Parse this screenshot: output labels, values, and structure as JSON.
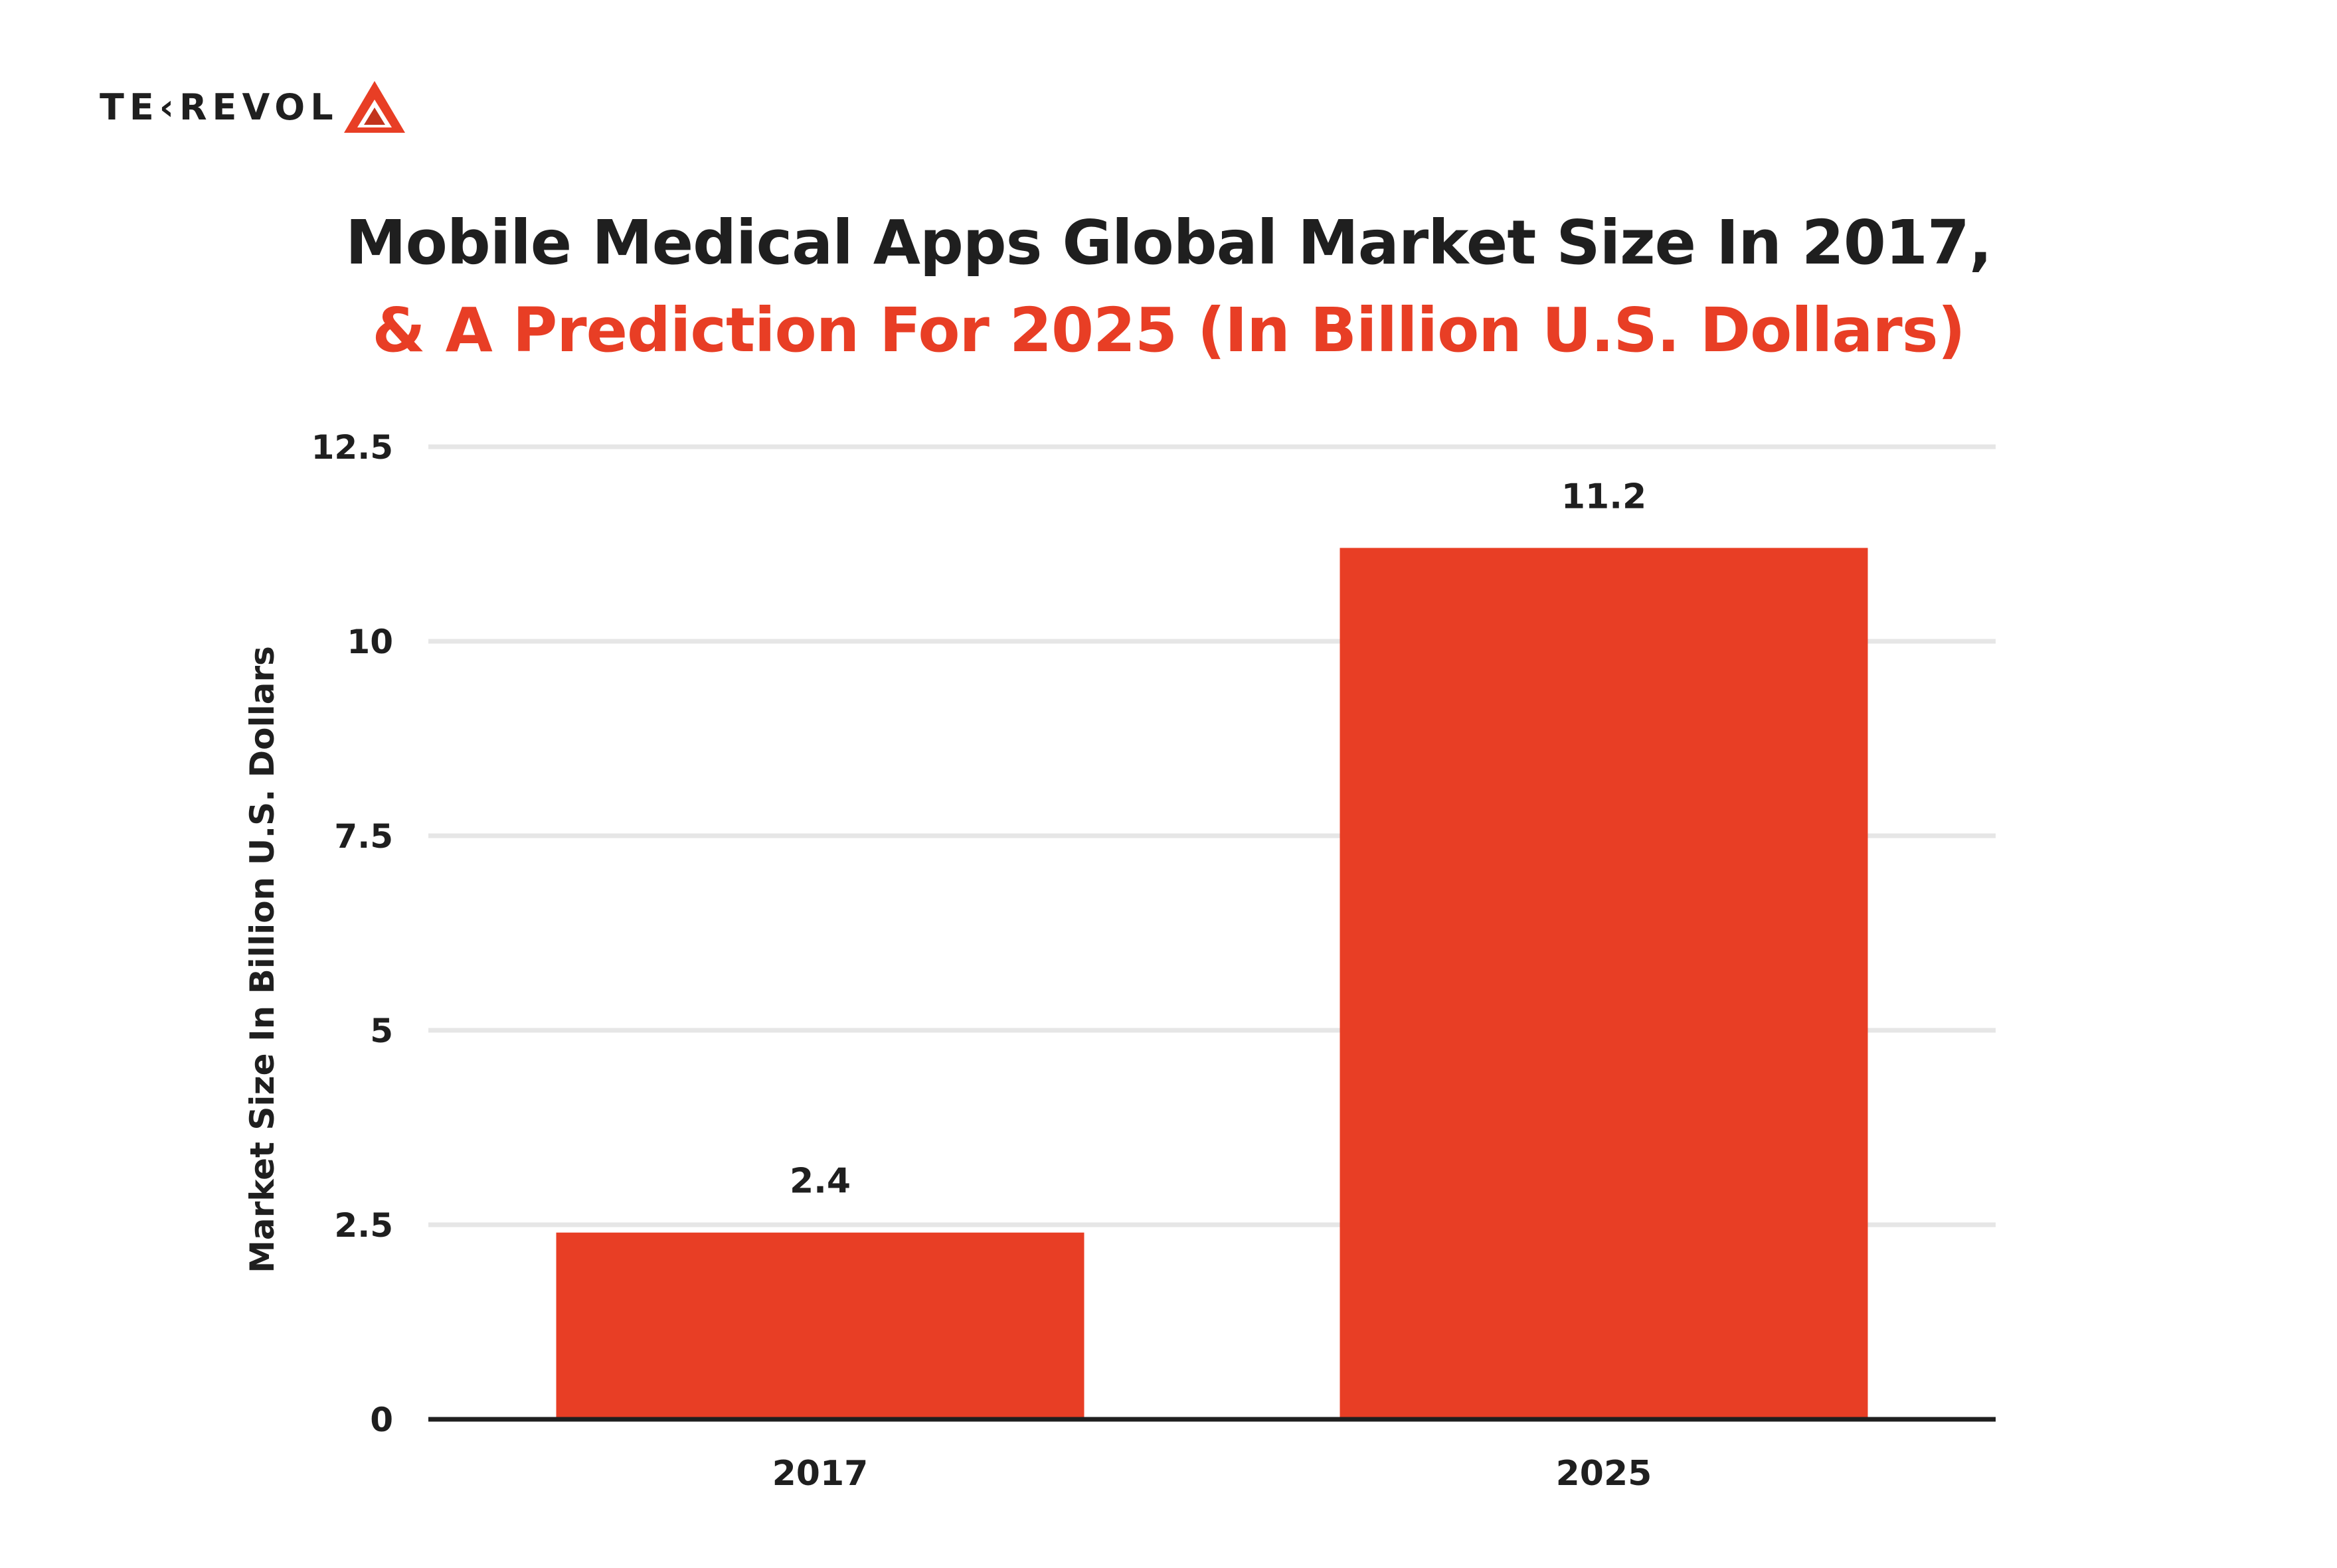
{
  "brand": {
    "logo_text": "TE‹REVOL",
    "logo_accent_color": "#e83e25",
    "logo_accent_dark": "#c2331d"
  },
  "title": {
    "line1": "Mobile Medical Apps Global Market Size In 2017,",
    "line2": "& A Prediction For 2025 (In Billion U.S. Dollars)"
  },
  "colors": {
    "bar": "#e83e25",
    "grid": "#e6e6e6",
    "axis": "#1f1f1f",
    "text": "#1f1f1f"
  },
  "chart_data": {
    "type": "bar",
    "categories": [
      "2017",
      "2025"
    ],
    "values": [
      2.4,
      11.2
    ],
    "data_labels": [
      "2.4",
      "11.2"
    ],
    "title": "Mobile Medical Apps Global Market Size In 2017, & A Prediction For 2025 (In Billion U.S. Dollars)",
    "xlabel": "",
    "ylabel": "Market Size In Billion U.S. Dollars",
    "ylim": [
      0,
      12.5
    ],
    "yticks": [
      0,
      2.5,
      5,
      7.5,
      10,
      12.5
    ],
    "ytick_labels": [
      "0",
      "2.5",
      "5",
      "7.5",
      "10",
      "12.5"
    ],
    "grid": true,
    "legend": "none"
  }
}
